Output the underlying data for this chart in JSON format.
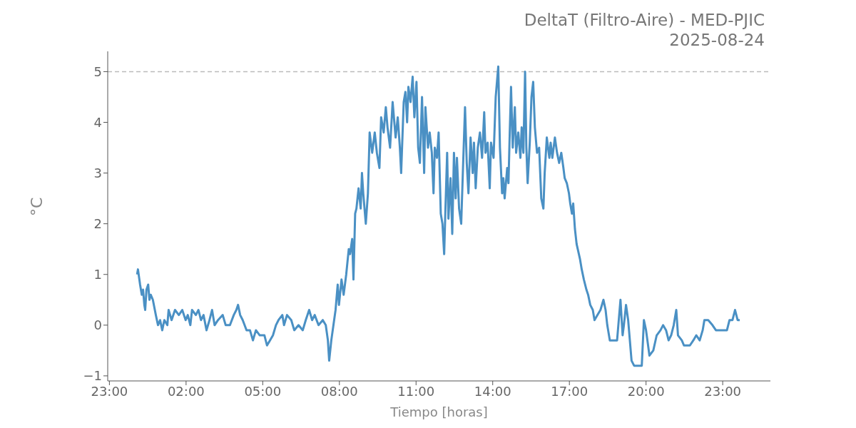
{
  "chart_data": {
    "type": "line",
    "title": "DeltaT (Filtro-Aire) - MED-PJIC",
    "subtitle": "2025-08-24",
    "xlabel": "Tiempo [horas]",
    "ylabel": "°C",
    "xlim": [
      "2025-08-23T22:56",
      "2025-08-25T00:52"
    ],
    "xticks": [
      {
        "value": "2025-08-23T23:00",
        "label": "23:00"
      },
      {
        "value": "2025-08-24T02:00",
        "label": "02:00"
      },
      {
        "value": "2025-08-24T05:00",
        "label": "05:00"
      },
      {
        "value": "2025-08-24T08:00",
        "label": "08:00"
      },
      {
        "value": "2025-08-24T11:00",
        "label": "11:00"
      },
      {
        "value": "2025-08-24T14:00",
        "label": "14:00"
      },
      {
        "value": "2025-08-24T17:00",
        "label": "17:00"
      },
      {
        "value": "2025-08-24T20:00",
        "label": "20:00"
      },
      {
        "value": "2025-08-24T23:00",
        "label": "23:00"
      }
    ],
    "ylim": [
      -1.1,
      5.4
    ],
    "yticks": [
      {
        "value": -1,
        "label": "−1"
      },
      0,
      1,
      2,
      3,
      4,
      5
    ],
    "ref_lines": [
      {
        "axis": "y",
        "value": 5,
        "label": null,
        "color": "#bbbbbb",
        "line_style": "dashed"
      }
    ],
    "series": [
      {
        "color": "#4a90c4",
        "x": [
          "2025-08-24T00:05",
          "2025-08-24T00:07",
          "2025-08-24T00:12",
          "2025-08-24T00:16",
          "2025-08-24T00:19",
          "2025-08-24T00:22",
          "2025-08-24T00:24",
          "2025-08-24T00:27",
          "2025-08-24T00:31",
          "2025-08-24T00:34",
          "2025-08-24T00:37",
          "2025-08-24T00:42",
          "2025-08-24T00:49",
          "2025-08-24T00:54",
          "2025-08-24T00:59",
          "2025-08-24T01:04",
          "2025-08-24T01:09",
          "2025-08-24T01:16",
          "2025-08-24T01:19",
          "2025-08-24T01:26",
          "2025-08-24T01:34",
          "2025-08-24T01:43",
          "2025-08-24T01:51",
          "2025-08-24T01:59",
          "2025-08-24T02:04",
          "2025-08-24T02:10",
          "2025-08-24T02:14",
          "2025-08-24T02:23",
          "2025-08-24T02:29",
          "2025-08-24T02:35",
          "2025-08-24T02:41",
          "2025-08-24T02:48",
          "2025-08-24T02:55",
          "2025-08-24T03:01",
          "2025-08-24T03:07",
          "2025-08-24T03:15",
          "2025-08-24T03:26",
          "2025-08-24T03:33",
          "2025-08-24T03:43",
          "2025-08-24T03:52",
          "2025-08-24T03:58",
          "2025-08-24T04:02",
          "2025-08-24T04:07",
          "2025-08-24T04:13",
          "2025-08-24T04:22",
          "2025-08-24T04:30",
          "2025-08-24T04:37",
          "2025-08-24T04:44",
          "2025-08-24T04:53",
          "2025-08-24T05:04",
          "2025-08-24T05:10",
          "2025-08-24T05:17",
          "2025-08-24T05:24",
          "2025-08-24T05:31",
          "2025-08-24T05:37",
          "2025-08-24T05:46",
          "2025-08-24T05:50",
          "2025-08-24T05:57",
          "2025-08-24T06:07",
          "2025-08-24T06:14",
          "2025-08-24T06:24",
          "2025-08-24T06:34",
          "2025-08-24T06:41",
          "2025-08-24T06:49",
          "2025-08-24T06:56",
          "2025-08-24T07:02",
          "2025-08-24T07:11",
          "2025-08-24T07:21",
          "2025-08-24T07:28",
          "2025-08-24T07:33",
          "2025-08-24T07:36",
          "2025-08-24T07:41",
          "2025-08-24T07:46",
          "2025-08-24T07:51",
          "2025-08-24T07:56",
          "2025-08-24T07:59",
          "2025-08-24T08:05",
          "2025-08-24T08:10",
          "2025-08-24T08:16",
          "2025-08-24T08:22",
          "2025-08-24T08:25",
          "2025-08-24T08:30",
          "2025-08-24T08:33",
          "2025-08-24T08:37",
          "2025-08-24T08:40",
          "2025-08-24T08:45",
          "2025-08-24T08:50",
          "2025-08-24T08:53",
          "2025-08-24T08:56",
          "2025-08-24T09:02",
          "2025-08-24T09:07",
          "2025-08-24T09:11",
          "2025-08-24T09:17",
          "2025-08-24T09:23",
          "2025-08-24T09:28",
          "2025-08-24T09:34",
          "2025-08-24T09:38",
          "2025-08-24T09:44",
          "2025-08-24T09:49",
          "2025-08-24T09:53",
          "2025-08-24T09:59",
          "2025-08-24T10:05",
          "2025-08-24T10:12",
          "2025-08-24T10:17",
          "2025-08-24T10:22",
          "2025-08-24T10:25",
          "2025-08-24T10:31",
          "2025-08-24T10:35",
          "2025-08-24T10:39",
          "2025-08-24T10:42",
          "2025-08-24T10:47",
          "2025-08-24T10:52",
          "2025-08-24T10:56",
          "2025-08-24T11:01",
          "2025-08-24T11:05",
          "2025-08-24T11:09",
          "2025-08-24T11:14",
          "2025-08-24T11:19",
          "2025-08-24T11:22",
          "2025-08-24T11:28",
          "2025-08-24T11:32",
          "2025-08-24T11:37",
          "2025-08-24T11:41",
          "2025-08-24T11:44",
          "2025-08-24T11:49",
          "2025-08-24T11:53",
          "2025-08-24T11:58",
          "2025-08-24T12:02",
          "2025-08-24T12:06",
          "2025-08-24T12:09",
          "2025-08-24T12:13",
          "2025-08-24T12:16",
          "2025-08-24T12:21",
          "2025-08-24T12:25",
          "2025-08-24T12:29",
          "2025-08-24T12:33",
          "2025-08-24T12:36",
          "2025-08-24T12:41",
          "2025-08-24T12:46",
          "2025-08-24T12:51",
          "2025-08-24T12:55",
          "2025-08-24T12:59",
          "2025-08-24T13:03",
          "2025-08-24T13:08",
          "2025-08-24T13:13",
          "2025-08-24T13:16",
          "2025-08-24T13:20",
          "2025-08-24T13:25",
          "2025-08-24T13:30",
          "2025-08-24T13:35",
          "2025-08-24T13:40",
          "2025-08-24T13:43",
          "2025-08-24T13:48",
          "2025-08-24T13:53",
          "2025-08-24T13:56",
          "2025-08-24T14:02",
          "2025-08-24T14:07",
          "2025-08-24T14:10",
          "2025-08-24T14:13",
          "2025-08-24T14:17",
          "2025-08-24T14:22",
          "2025-08-24T14:25",
          "2025-08-24T14:28",
          "2025-08-24T14:34",
          "2025-08-24T14:37",
          "2025-08-24T14:40",
          "2025-08-24T14:43",
          "2025-08-24T14:47",
          "2025-08-24T14:52",
          "2025-08-24T14:55",
          "2025-08-24T15:00",
          "2025-08-24T15:05",
          "2025-08-24T15:08",
          "2025-08-24T15:12",
          "2025-08-24T15:16",
          "2025-08-24T15:19",
          "2025-08-24T15:22",
          "2025-08-24T15:27",
          "2025-08-24T15:31",
          "2025-08-24T15:35",
          "2025-08-24T15:39",
          "2025-08-24T15:44",
          "2025-08-24T15:49",
          "2025-08-24T15:54",
          "2025-08-24T15:59",
          "2025-08-24T16:02",
          "2025-08-24T16:07",
          "2025-08-24T16:13",
          "2025-08-24T16:16",
          "2025-08-24T16:20",
          "2025-08-24T16:26",
          "2025-08-24T16:31",
          "2025-08-24T16:36",
          "2025-08-24T16:41",
          "2025-08-24T16:46",
          "2025-08-24T16:49",
          "2025-08-24T16:54",
          "2025-08-24T16:59",
          "2025-08-24T17:02",
          "2025-08-24T17:06",
          "2025-08-24T17:09",
          "2025-08-24T17:13",
          "2025-08-24T17:17",
          "2025-08-24T17:25",
          "2025-08-24T17:29",
          "2025-08-24T17:34",
          "2025-08-24T17:40",
          "2025-08-24T17:44",
          "2025-08-24T17:49",
          "2025-08-24T17:55",
          "2025-08-24T17:59",
          "2025-08-24T18:06",
          "2025-08-24T18:13",
          "2025-08-24T18:20",
          "2025-08-24T18:25",
          "2025-08-24T18:29",
          "2025-08-24T18:35",
          "2025-08-24T18:45",
          "2025-08-24T18:52",
          "2025-08-24T18:56",
          "2025-08-24T19:00",
          "2025-08-24T19:05",
          "2025-08-24T19:08",
          "2025-08-24T19:13",
          "2025-08-24T19:18",
          "2025-08-24T19:22",
          "2025-08-24T19:26",
          "2025-08-24T19:32",
          "2025-08-24T19:42",
          "2025-08-24T19:50",
          "2025-08-24T19:55",
          "2025-08-24T20:00",
          "2025-08-24T20:08",
          "2025-08-24T20:17",
          "2025-08-24T20:25",
          "2025-08-24T20:34",
          "2025-08-24T20:40",
          "2025-08-24T20:47",
          "2025-08-24T20:53",
          "2025-08-24T20:59",
          "2025-08-24T21:05",
          "2025-08-24T21:11",
          "2025-08-24T21:15",
          "2025-08-24T21:24",
          "2025-08-24T21:29",
          "2025-08-24T21:43",
          "2025-08-24T21:51",
          "2025-08-24T21:58",
          "2025-08-24T22:06",
          "2025-08-24T22:13",
          "2025-08-24T22:17",
          "2025-08-24T22:26",
          "2025-08-24T22:36",
          "2025-08-24T22:44",
          "2025-08-24T22:56",
          "2025-08-24T23:10",
          "2025-08-24T23:16",
          "2025-08-24T23:23",
          "2025-08-24T23:29",
          "2025-08-24T23:35",
          "2025-08-24T23:40"
        ],
        "values": [
          1.0,
          1.1,
          0.8,
          0.6,
          0.7,
          0.4,
          0.3,
          0.7,
          0.8,
          0.5,
          0.6,
          0.5,
          0.2,
          0.0,
          0.1,
          -0.1,
          0.1,
          0.0,
          0.3,
          0.1,
          0.3,
          0.2,
          0.3,
          0.1,
          0.2,
          0.0,
          0.3,
          0.2,
          0.3,
          0.1,
          0.2,
          -0.1,
          0.1,
          0.3,
          0.0,
          0.1,
          0.2,
          0.0,
          0.0,
          0.2,
          0.3,
          0.4,
          0.2,
          0.1,
          -0.1,
          -0.1,
          -0.3,
          -0.1,
          -0.2,
          -0.2,
          -0.4,
          -0.3,
          -0.2,
          0.0,
          0.1,
          0.2,
          0.0,
          0.2,
          0.1,
          -0.1,
          0.0,
          -0.1,
          0.1,
          0.3,
          0.1,
          0.2,
          0.0,
          0.1,
          0.0,
          -0.3,
          -0.7,
          -0.3,
          0.0,
          0.3,
          0.8,
          0.4,
          0.9,
          0.6,
          1.0,
          1.5,
          1.4,
          1.7,
          0.9,
          2.2,
          2.3,
          2.7,
          2.3,
          3.0,
          2.6,
          2.0,
          2.6,
          3.8,
          3.4,
          3.8,
          3.4,
          3.1,
          4.1,
          3.8,
          4.3,
          3.9,
          3.5,
          4.4,
          3.7,
          4.1,
          3.5,
          3.0,
          4.4,
          4.6,
          4.0,
          4.7,
          4.4,
          4.9,
          4.1,
          4.8,
          3.5,
          3.2,
          4.5,
          3.0,
          4.3,
          3.5,
          3.8,
          3.4,
          2.6,
          3.5,
          3.3,
          3.8,
          2.2,
          2.0,
          1.4,
          2.3,
          3.4,
          2.1,
          2.9,
          1.8,
          3.4,
          2.5,
          3.3,
          2.3,
          2.0,
          3.3,
          4.3,
          3.2,
          2.6,
          3.7,
          3.0,
          3.6,
          2.7,
          3.5,
          3.8,
          3.3,
          4.2,
          3.4,
          3.6,
          2.7,
          3.6,
          3.3,
          4.5,
          4.8,
          5.1,
          3.5,
          2.6,
          2.9,
          2.5,
          3.1,
          2.8,
          3.8,
          4.7,
          3.5,
          4.3,
          3.4,
          3.8,
          3.3,
          3.9,
          3.4,
          5.0,
          3.5,
          2.8,
          3.6,
          4.5,
          4.8,
          3.9,
          3.4,
          3.5,
          2.5,
          2.3,
          3.0,
          3.7,
          3.3,
          3.6,
          3.3,
          3.7,
          3.4,
          3.2,
          3.4,
          3.1,
          2.9,
          2.8,
          2.6,
          2.4,
          2.2,
          2.4,
          1.9,
          1.6,
          1.3,
          1.1,
          0.9,
          0.7,
          0.6,
          0.4,
          0.3,
          0.1,
          0.2,
          0.3,
          0.5,
          0.3,
          0.0,
          -0.3,
          -0.3,
          -0.3,
          0.1,
          0.5,
          -0.2,
          0.0,
          0.4,
          0.1,
          -0.3,
          -0.7,
          -0.8,
          -0.8,
          -0.8,
          0.1,
          -0.1,
          -0.6,
          -0.5,
          -0.2,
          -0.1,
          0.0,
          -0.1,
          -0.3,
          -0.2,
          0.0,
          0.3,
          -0.2,
          -0.3,
          -0.4,
          -0.4,
          -0.3,
          -0.2,
          -0.3,
          -0.1,
          0.1,
          0.1,
          0.0,
          -0.1,
          -0.1,
          -0.1,
          0.1,
          0.1,
          0.3,
          0.1,
          0.1
        ]
      }
    ]
  }
}
